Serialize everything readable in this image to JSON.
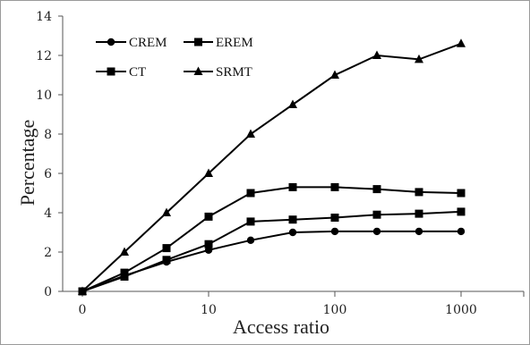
{
  "chart_data": {
    "type": "line",
    "x_scale": "log",
    "x_categories": [
      "0",
      "",
      "",
      "10",
      "",
      "",
      "100",
      "",
      "",
      "1000"
    ],
    "x_tick_labels": [
      "0",
      "10",
      "100",
      "1000"
    ],
    "xlabel": "Access ratio",
    "ylabel": "Percentage",
    "ylim": [
      0,
      14
    ],
    "y_ticks": [
      "0",
      "2",
      "4",
      "6",
      "8",
      "10",
      "12",
      "14"
    ],
    "grid": false,
    "legend_position": "top-left",
    "series": [
      {
        "name": "CREM",
        "marker": "circle",
        "color": "#000000",
        "values": [
          0,
          0.8,
          1.5,
          2.1,
          2.6,
          3.0,
          3.05,
          3.05,
          3.05,
          3.05
        ]
      },
      {
        "name": "EREM",
        "marker": "square",
        "color": "#000000",
        "values": [
          0,
          0.95,
          2.2,
          3.8,
          5.0,
          5.3,
          5.3,
          5.2,
          5.05,
          5.0
        ]
      },
      {
        "name": "CT",
        "marker": "square",
        "color": "#000000",
        "values": [
          0,
          0.75,
          1.6,
          2.4,
          3.55,
          3.65,
          3.75,
          3.9,
          3.95,
          4.05
        ]
      },
      {
        "name": "SRMT",
        "marker": "triangle",
        "color": "#000000",
        "values": [
          0,
          2.0,
          4.0,
          6.0,
          8.0,
          9.5,
          11.0,
          12.0,
          11.8,
          12.6
        ]
      }
    ]
  }
}
